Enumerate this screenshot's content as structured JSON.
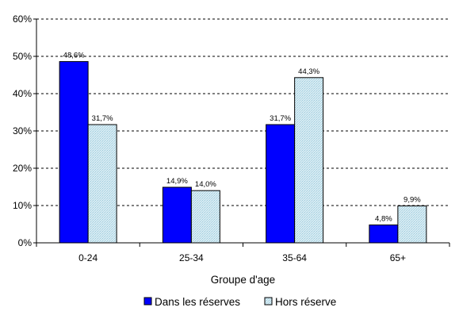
{
  "chart_data": {
    "type": "bar",
    "categories": [
      "0-24",
      "25-34",
      "35-64",
      "65+"
    ],
    "series": [
      {
        "name": "Dans les réserves",
        "values": [
          48.6,
          14.9,
          31.7,
          4.8
        ],
        "labels": [
          "48,6%",
          "14,9%",
          "31,7%",
          "4,8%"
        ],
        "color": "#0000ff"
      },
      {
        "name": "Hors réserve",
        "values": [
          31.7,
          14.0,
          44.3,
          9.9
        ],
        "labels": [
          "31,7%",
          "14,0%",
          "44,3%",
          "9,9%"
        ],
        "color": "#cfe6ef"
      }
    ],
    "xlabel": "Groupe d'age",
    "ylabel": "",
    "ylim": [
      0,
      60
    ],
    "yticks": [
      0,
      10,
      20,
      30,
      40,
      50,
      60
    ],
    "ytick_labels": [
      "0%",
      "10%",
      "20%",
      "30%",
      "40%",
      "50%",
      "60%"
    ],
    "grid": true,
    "legend_position": "bottom"
  }
}
